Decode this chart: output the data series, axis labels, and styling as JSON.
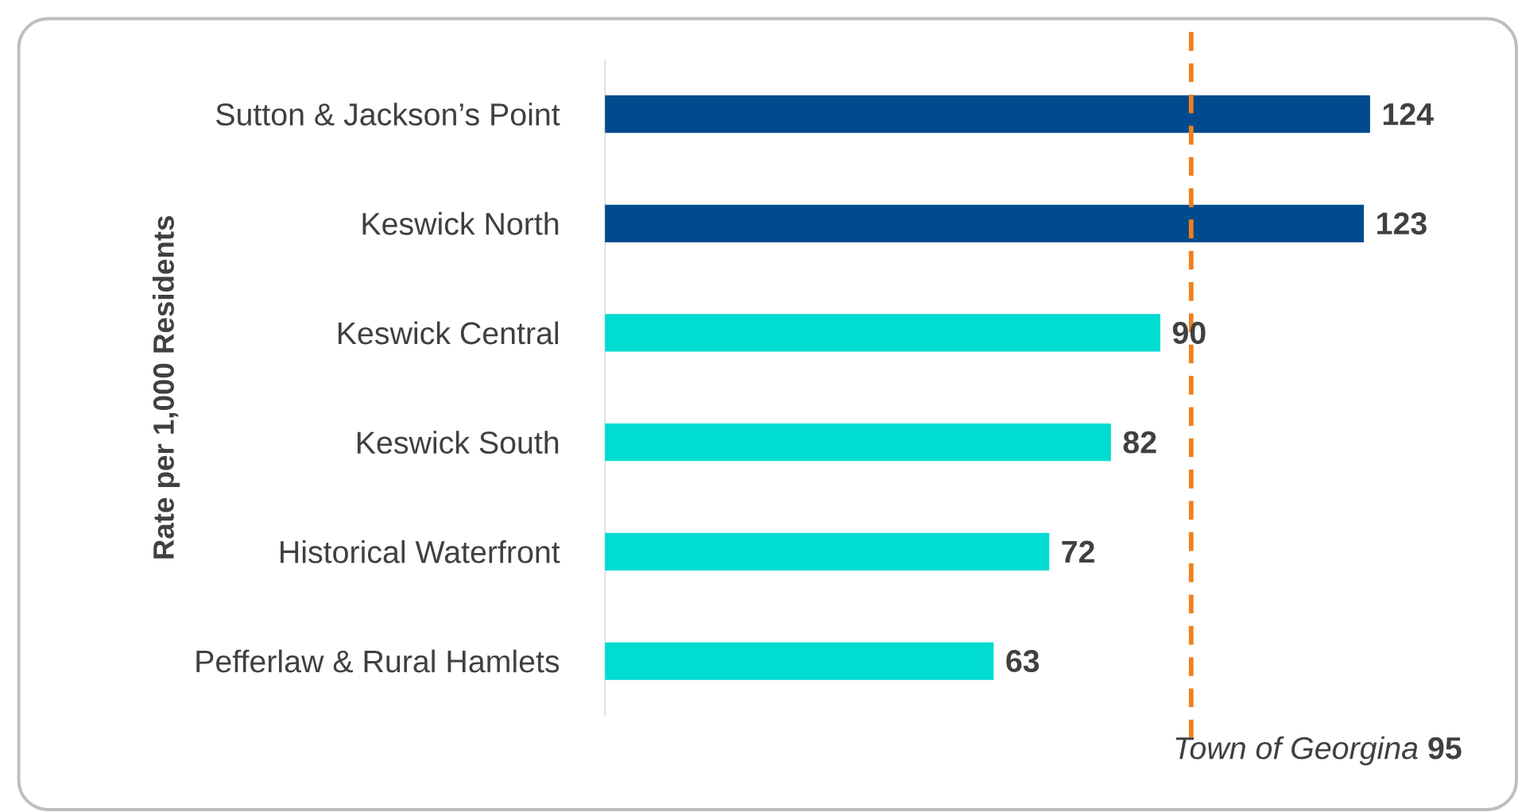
{
  "chart_data": {
    "type": "bar",
    "orientation": "horizontal",
    "ylabel": "Rate per 1,000 Residents",
    "categories": [
      "Sutton & Jackson’s Point",
      "Keswick North",
      "Keswick Central",
      "Keswick South",
      "Historical Waterfront",
      "Pefferlaw & Rural Hamlets"
    ],
    "values": [
      124,
      123,
      90,
      82,
      72,
      63
    ],
    "colors": [
      "#004b8d",
      "#004b8d",
      "#00dcd0",
      "#00dcd0",
      "#00dcd0",
      "#00dcd0"
    ],
    "tick_labels": "y",
    "data_labels": true,
    "ref_lines": [
      {
        "axis": "x",
        "value": 95,
        "label": "*Town of Georgina* **95**",
        "color": "#f07f1d",
        "line_style": "dashed"
      }
    ]
  }
}
